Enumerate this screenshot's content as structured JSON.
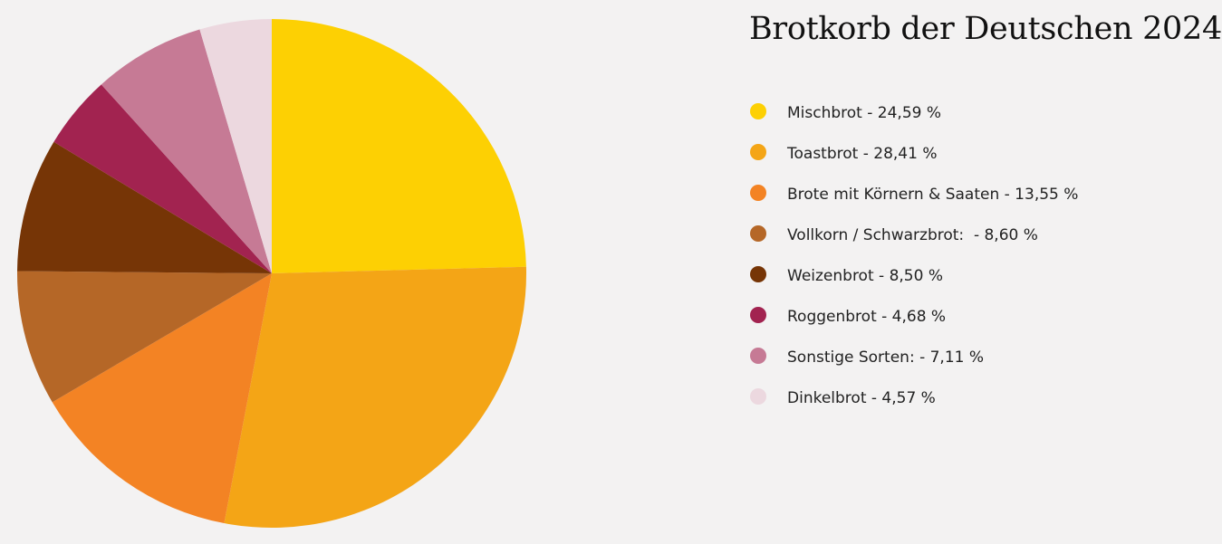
{
  "chart_data": {
    "type": "pie",
    "title": "Brotkorb der Deutschen 2024",
    "legend_position": "right",
    "slices": [
      {
        "label": "Mischbrot - 24,59 %",
        "value": 24.59,
        "color": "#fdd003"
      },
      {
        "label": "Toastbrot - 28,41 %",
        "value": 28.41,
        "color": "#f4a516"
      },
      {
        "label": "Brote mit Körnern & Saaten - 13,55 %",
        "value": 13.55,
        "color": "#f38324"
      },
      {
        "label": "Vollkorn / Schwarzbrot:  - 8,60 %",
        "value": 8.6,
        "color": "#b56727"
      },
      {
        "label": "Weizenbrot - 8,50 %",
        "value": 8.5,
        "color": "#763506"
      },
      {
        "label": "Roggenbrot - 4,68 %",
        "value": 4.68,
        "color": "#a22350"
      },
      {
        "label": "Sonstige Sorten: - 7,11 %",
        "value": 7.11,
        "color": "#c67a95"
      },
      {
        "label": "Dinkelbrot - 4,57 %",
        "value": 4.57,
        "color": "#ecd8df"
      }
    ]
  }
}
